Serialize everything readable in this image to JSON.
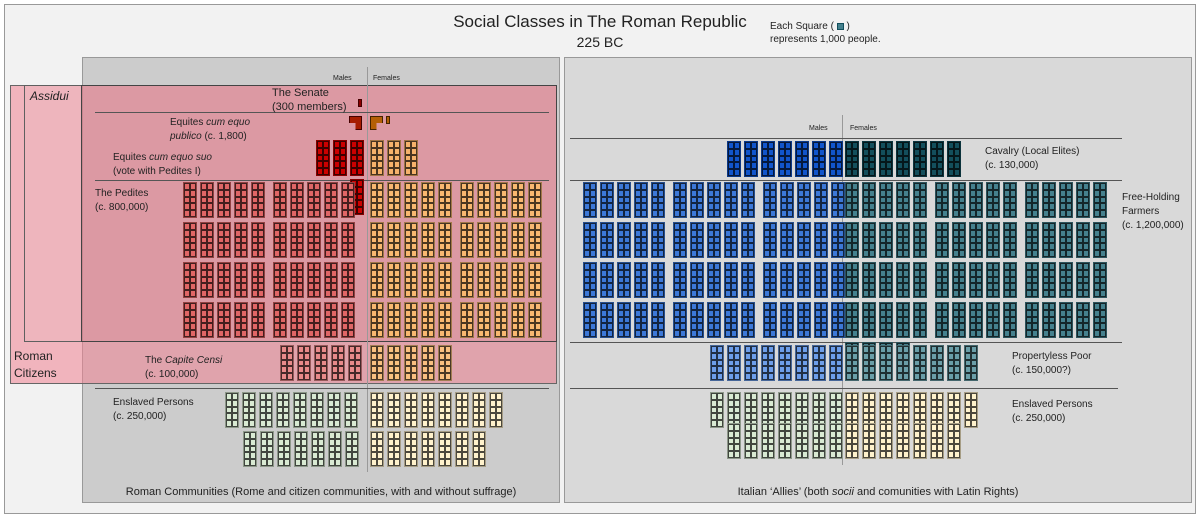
{
  "title": "Social Classes in The Roman Republic",
  "subtitle": "225 BC",
  "legend": {
    "line1a": "Each Square (",
    "line1b": ")",
    "line2": "represents 1,000 people."
  },
  "colors": {
    "senate": "#8b0000",
    "eq_pub_m": "#a61c00",
    "eq_pub_f": "#b45f06",
    "eq_suo_m": "#cc0000",
    "eq_suo_f": "#f6b26b",
    "ped_m": "#e06666",
    "ped_f": "#f9b870",
    "cap_m": "#e88a8a",
    "cap_f": "#f9c080",
    "slave_m": "#d9ead3",
    "slave_f": "#fff2cc",
    "cav_m": "#1155cc",
    "cav_f": "#134f5c",
    "fh_m": "#3c78d8",
    "fh_f": "#45818e",
    "poor_m": "#6d9eeb",
    "poor_f": "#6a9ea8"
  },
  "left": {
    "males": "Males",
    "females": "Females",
    "assidui": "Assidui",
    "citizens_1": "Roman",
    "citizens_2": "Citizens",
    "senate_1": "The Senate",
    "senate_2": "(300 members)",
    "eq_pub_1a": "Equites ",
    "eq_pub_1b": "cum equo",
    "eq_pub_2a": "publico",
    "eq_pub_2b": " (c. 1,800)",
    "eq_suo_1a": "Equites ",
    "eq_suo_1b": "cum equo suo",
    "eq_suo_2": "(vote with Pedites I)",
    "pedites_1": "The Pedites",
    "pedites_2": "(c. 800,000)",
    "capite_1a": "The ",
    "capite_1b": "Capite Censi",
    "capite_2": "(c. 100,000)",
    "slaves_1": "Enslaved Persons",
    "slaves_2": "(c. 250,000)",
    "caption": "Roman Communities (Rome and citizen communities, with and without suffrage)",
    "groups": {
      "ped_m": 40,
      "ped_f": 40,
      "cap_m": 5,
      "cap_f": 5,
      "slave_m1": 8,
      "slave_m2": 7,
      "slave_f1": 8,
      "slave_f2": 7,
      "eq_suo_m": 4,
      "eq_suo_f": 3
    }
  },
  "right": {
    "males": "Males",
    "females": "Females",
    "cavalry_1": "Cavalry (Local Elites)",
    "cavalry_2": "(c. 130,000)",
    "fh_1": "Free-Holding",
    "fh_2": "Farmers",
    "fh_3": "(c. 1,200,000)",
    "poor_1": "Propertyless Poor",
    "poor_2": "(c.  150,000?)",
    "slaves_1": "Enslaved Persons",
    "slaves_2": "(c. 250,000)",
    "caption_a": "Italian ‘Allies’ (both ",
    "caption_b": "socii",
    "caption_c": " and comunities with Latin Rights)",
    "groups": {
      "cav_m": 7,
      "cav_f": 7,
      "fh_m": 60,
      "fh_f": 64,
      "poor_m": 8,
      "poor_f": 8,
      "slave_m1": 8,
      "slave_m2": 7,
      "slave_f1": 8,
      "slave_f2": 7
    }
  }
}
